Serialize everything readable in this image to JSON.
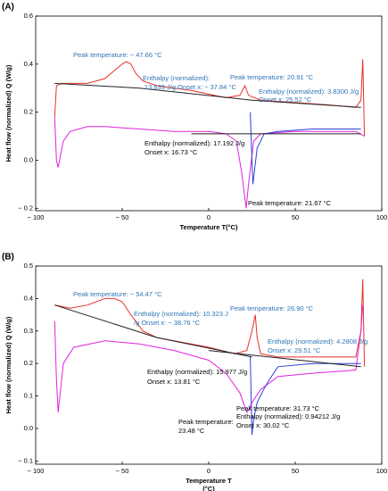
{
  "chart_data": [
    {
      "type": "line",
      "panel": "(A)",
      "y_label": "Heat flow (normalized) Q (W/g)",
      "x_label": "Temperature T(°C)",
      "xlim": [
        -100,
        100
      ],
      "xticks": [
        {
          "value": -100,
          "label": "− 100"
        },
        {
          "value": -50,
          "label": "− 50"
        },
        0,
        50,
        100
      ],
      "ylim": [
        -0.21,
        0.6
      ],
      "yticks": [
        {
          "value": -0.2,
          "label": "− 0.2"
        },
        {
          "value": 0,
          "label": "0.0"
        },
        0.2,
        0.4,
        0.6
      ],
      "series": [
        {
          "color": "#e8302a",
          "x": [
            -89,
            -88,
            -85,
            -70,
            -60,
            -55,
            -50,
            -47.66,
            -45,
            -42,
            -38,
            -30,
            -10,
            10,
            18,
            20.91,
            23,
            30,
            50,
            70,
            85,
            88,
            89,
            90
          ],
          "values": [
            0.18,
            0.31,
            0.32,
            0.32,
            0.34,
            0.37,
            0.4,
            0.41,
            0.4,
            0.36,
            0.33,
            0.31,
            0.29,
            0.26,
            0.27,
            0.31,
            0.27,
            0.25,
            0.24,
            0.23,
            0.22,
            0.25,
            0.42,
            0.1
          ]
        },
        {
          "color": "#e022e0",
          "x": [
            -89,
            -88,
            -87,
            -84,
            -80,
            -70,
            -60,
            -40,
            -20,
            0,
            10,
            16,
            19,
            21.67,
            23,
            26,
            30,
            50,
            70,
            85,
            90
          ],
          "values": [
            0.18,
            0.0,
            -0.03,
            0.08,
            0.12,
            0.14,
            0.14,
            0.13,
            0.12,
            0.12,
            0.11,
            0.08,
            -0.05,
            -0.2,
            -0.1,
            0.08,
            0.11,
            0.12,
            0.12,
            0.12,
            0.1
          ]
        },
        {
          "color": "#2a3fd8",
          "x": [
            24,
            24.5,
            25.5,
            28,
            32,
            40,
            60,
            88
          ],
          "values": [
            0.2,
            0.1,
            -0.1,
            0.05,
            0.11,
            0.12,
            0.13,
            0.13
          ]
        },
        {
          "color": "#222222",
          "x": [
            -89,
            -40,
            25,
            88
          ],
          "values": [
            0.32,
            0.3,
            0.25,
            0.22
          ]
        },
        {
          "color": "#222222",
          "x": [
            -10,
            88
          ],
          "values": [
            0.11,
            0.11
          ]
        }
      ],
      "annotations": [
        {
          "text": "Peak temperature: − 47.66 °C",
          "color": "#2e75b6"
        },
        {
          "text": "Enthalpy (normalized):",
          "color": "#2e75b6"
        },
        {
          "text": "13.639 J/g   Onset x: − 37.84 °C",
          "color": "#2e75b6"
        },
        {
          "text": "Peak temperature: 20.91 °C",
          "color": "#2e75b6"
        },
        {
          "text": "Enthalpy (normalized): 3.8300 J/g",
          "color": "#2e75b6"
        },
        {
          "text": "Onset x: 25.52 °C",
          "color": "#2e75b6"
        },
        {
          "text": "Enthalpy (normalized): 17.192 J/g",
          "color": "#000000"
        },
        {
          "text": "Onset x: 16.73 °C",
          "color": "#000000"
        },
        {
          "text": "Peak temperature: 21.67 °C",
          "color": "#000000"
        }
      ]
    },
    {
      "type": "line",
      "panel": "(B)",
      "y_label": "Heat flow (normalized) Q (W/g)",
      "x_label": [
        "Temperature T",
        "(°C)"
      ],
      "xlim": [
        -100,
        100
      ],
      "xticks": [
        {
          "value": -100,
          "label": "− 100"
        },
        {
          "value": -50,
          "label": "− 50"
        },
        0,
        50,
        100
      ],
      "ylim": [
        -0.11,
        0.5
      ],
      "yticks": [
        {
          "value": -0.1,
          "label": "− 0.1"
        },
        {
          "value": 0,
          "label": "0.0"
        },
        0.1,
        0.2,
        0.3,
        0.4,
        0.5
      ],
      "series": [
        {
          "color": "#e8302a",
          "x": [
            -89,
            -80,
            -70,
            -60,
            -54.47,
            -50,
            -45,
            -38,
            -30,
            -20,
            0,
            15,
            22,
            25,
            26.9,
            28,
            30,
            40,
            60,
            85,
            88,
            89,
            90
          ],
          "values": [
            0.38,
            0.37,
            0.38,
            0.4,
            0.4,
            0.39,
            0.35,
            0.3,
            0.28,
            0.27,
            0.25,
            0.23,
            0.24,
            0.3,
            0.35,
            0.28,
            0.23,
            0.22,
            0.22,
            0.22,
            0.3,
            0.46,
            0.19
          ]
        },
        {
          "color": "#e022e0",
          "x": [
            -89,
            -88,
            -87,
            -84,
            -78,
            -60,
            -40,
            -20,
            0,
            10,
            18,
            22,
            23.48,
            25,
            30,
            40,
            60,
            85,
            88,
            89
          ],
          "values": [
            0.33,
            0.15,
            0.05,
            0.2,
            0.25,
            0.27,
            0.26,
            0.24,
            0.21,
            0.17,
            0.11,
            0.05,
            0.06,
            0.08,
            0.12,
            0.16,
            0.17,
            0.18,
            0.3,
            0.38
          ]
        },
        {
          "color": "#2a3fd8",
          "x": [
            24,
            25,
            26,
            28,
            31.73,
            35,
            40,
            60,
            88
          ],
          "values": [
            0.22,
            -0.02,
            0.03,
            0.08,
            0.12,
            0.15,
            0.19,
            0.2,
            0.2
          ]
        },
        {
          "color": "#222222",
          "x": [
            -89,
            -30,
            25
          ],
          "values": [
            0.38,
            0.28,
            0.22
          ]
        },
        {
          "color": "#222222",
          "x": [
            0,
            88
          ],
          "values": [
            0.24,
            0.19
          ]
        }
      ],
      "annotations": [
        {
          "text": "Peak temperature: − 54.47 °C",
          "color": "#2e75b6"
        },
        {
          "text": "Enthalpy (normalized): 10.323 J",
          "color": "#2e75b6"
        },
        {
          "text": "/g   Onset x: − 38.76 °C",
          "color": "#2e75b6"
        },
        {
          "text": "Peak temperature: 26.90 °C",
          "color": "#2e75b6"
        },
        {
          "text": "Enthalpy (normalized): 4.2808 J/g",
          "color": "#2e75b6"
        },
        {
          "text": "Onset x: 29.51 °C",
          "color": "#2e75b6"
        },
        {
          "text": "Enthalpy (normalized): 15.977 J/g",
          "color": "#000000"
        },
        {
          "text": "Onset x: 13.81 °C",
          "color": "#000000"
        },
        {
          "text": "Peak temperature: 31.73 °C",
          "color": "#000000"
        },
        {
          "text": "Enthalpy (normalized): 0.94212 J/g",
          "color": "#000000"
        },
        {
          "text": "Onset x: 30.02 °C",
          "color": "#000000"
        },
        {
          "text": "Peak temperature:",
          "color": "#000000"
        },
        {
          "text": "23.48 °C",
          "color": "#000000"
        }
      ]
    }
  ]
}
